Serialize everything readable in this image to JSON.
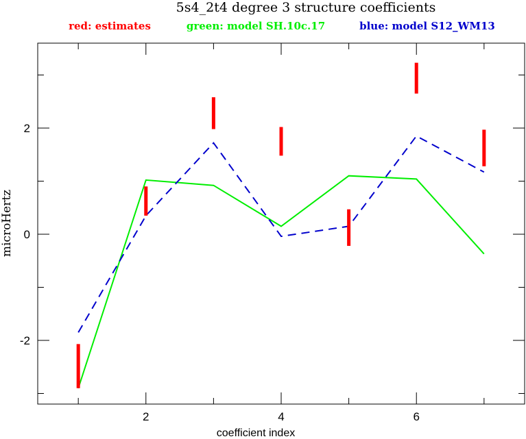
{
  "chart_data": {
    "type": "line",
    "title": "5s4_2t4 degree 3 structure coefficients",
    "legend_labels": {
      "estimates": "red: estimates",
      "green_model": "green: model SH.10c.17",
      "blue_model": "blue: model S12_WM13"
    },
    "xlabel": "coefficient index",
    "ylabel": "microHertz",
    "xlim": [
      0.4,
      7.6
    ],
    "ylim": [
      -3.2,
      3.6
    ],
    "x_ticks": [
      2,
      4,
      6
    ],
    "x_tick_labels": [
      "2",
      "4",
      "6"
    ],
    "y_ticks": [
      -2,
      0,
      2
    ],
    "y_tick_labels": [
      "-2",
      "0",
      "2"
    ],
    "grid": false,
    "legend_placement": "top",
    "estimates": {
      "x": [
        1,
        2,
        3,
        4,
        5,
        6,
        7
      ],
      "low": [
        -2.9,
        0.35,
        1.98,
        1.48,
        -0.22,
        2.65,
        1.28
      ],
      "high": [
        -2.07,
        0.9,
        2.58,
        2.02,
        0.47,
        3.23,
        1.97
      ]
    },
    "series": [
      {
        "name": "green: model SH.10c.17",
        "x": [
          1,
          2,
          3,
          4,
          5,
          6,
          7
        ],
        "values": [
          -2.9,
          1.02,
          0.92,
          0.15,
          1.1,
          1.04,
          -0.37
        ]
      },
      {
        "name": "blue: model S12_WM13",
        "x": [
          1,
          2,
          3,
          4,
          5,
          6,
          7
        ],
        "values": [
          -1.85,
          0.35,
          1.72,
          -0.04,
          0.15,
          1.85,
          1.17
        ]
      }
    ],
    "colors": {
      "estimates": "#ff0000",
      "green": "#00ee00",
      "blue": "#0000cc",
      "axes": "#000000"
    }
  }
}
